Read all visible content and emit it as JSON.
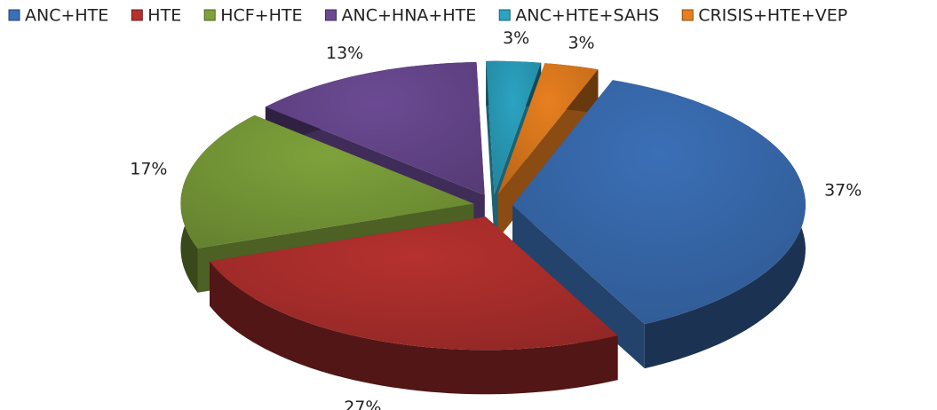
{
  "chart_data": {
    "type": "pie",
    "categories": [
      "ANC+HTE",
      "HTE",
      "HCF+HTE",
      "ANC+HNA+HTE",
      "ANC+HTE+SAHS",
      "CRISIS+HTE+VEP"
    ],
    "values": [
      37,
      27,
      17,
      13,
      3,
      3
    ],
    "value_labels": [
      "37%",
      "27%",
      "17%",
      "13%",
      "3%",
      "3%"
    ],
    "colors": [
      "#3b6fb6",
      "#b5312e",
      "#7ea23b",
      "#6b4a93",
      "#2ba3c1",
      "#e77f1f"
    ],
    "legend": "top"
  }
}
